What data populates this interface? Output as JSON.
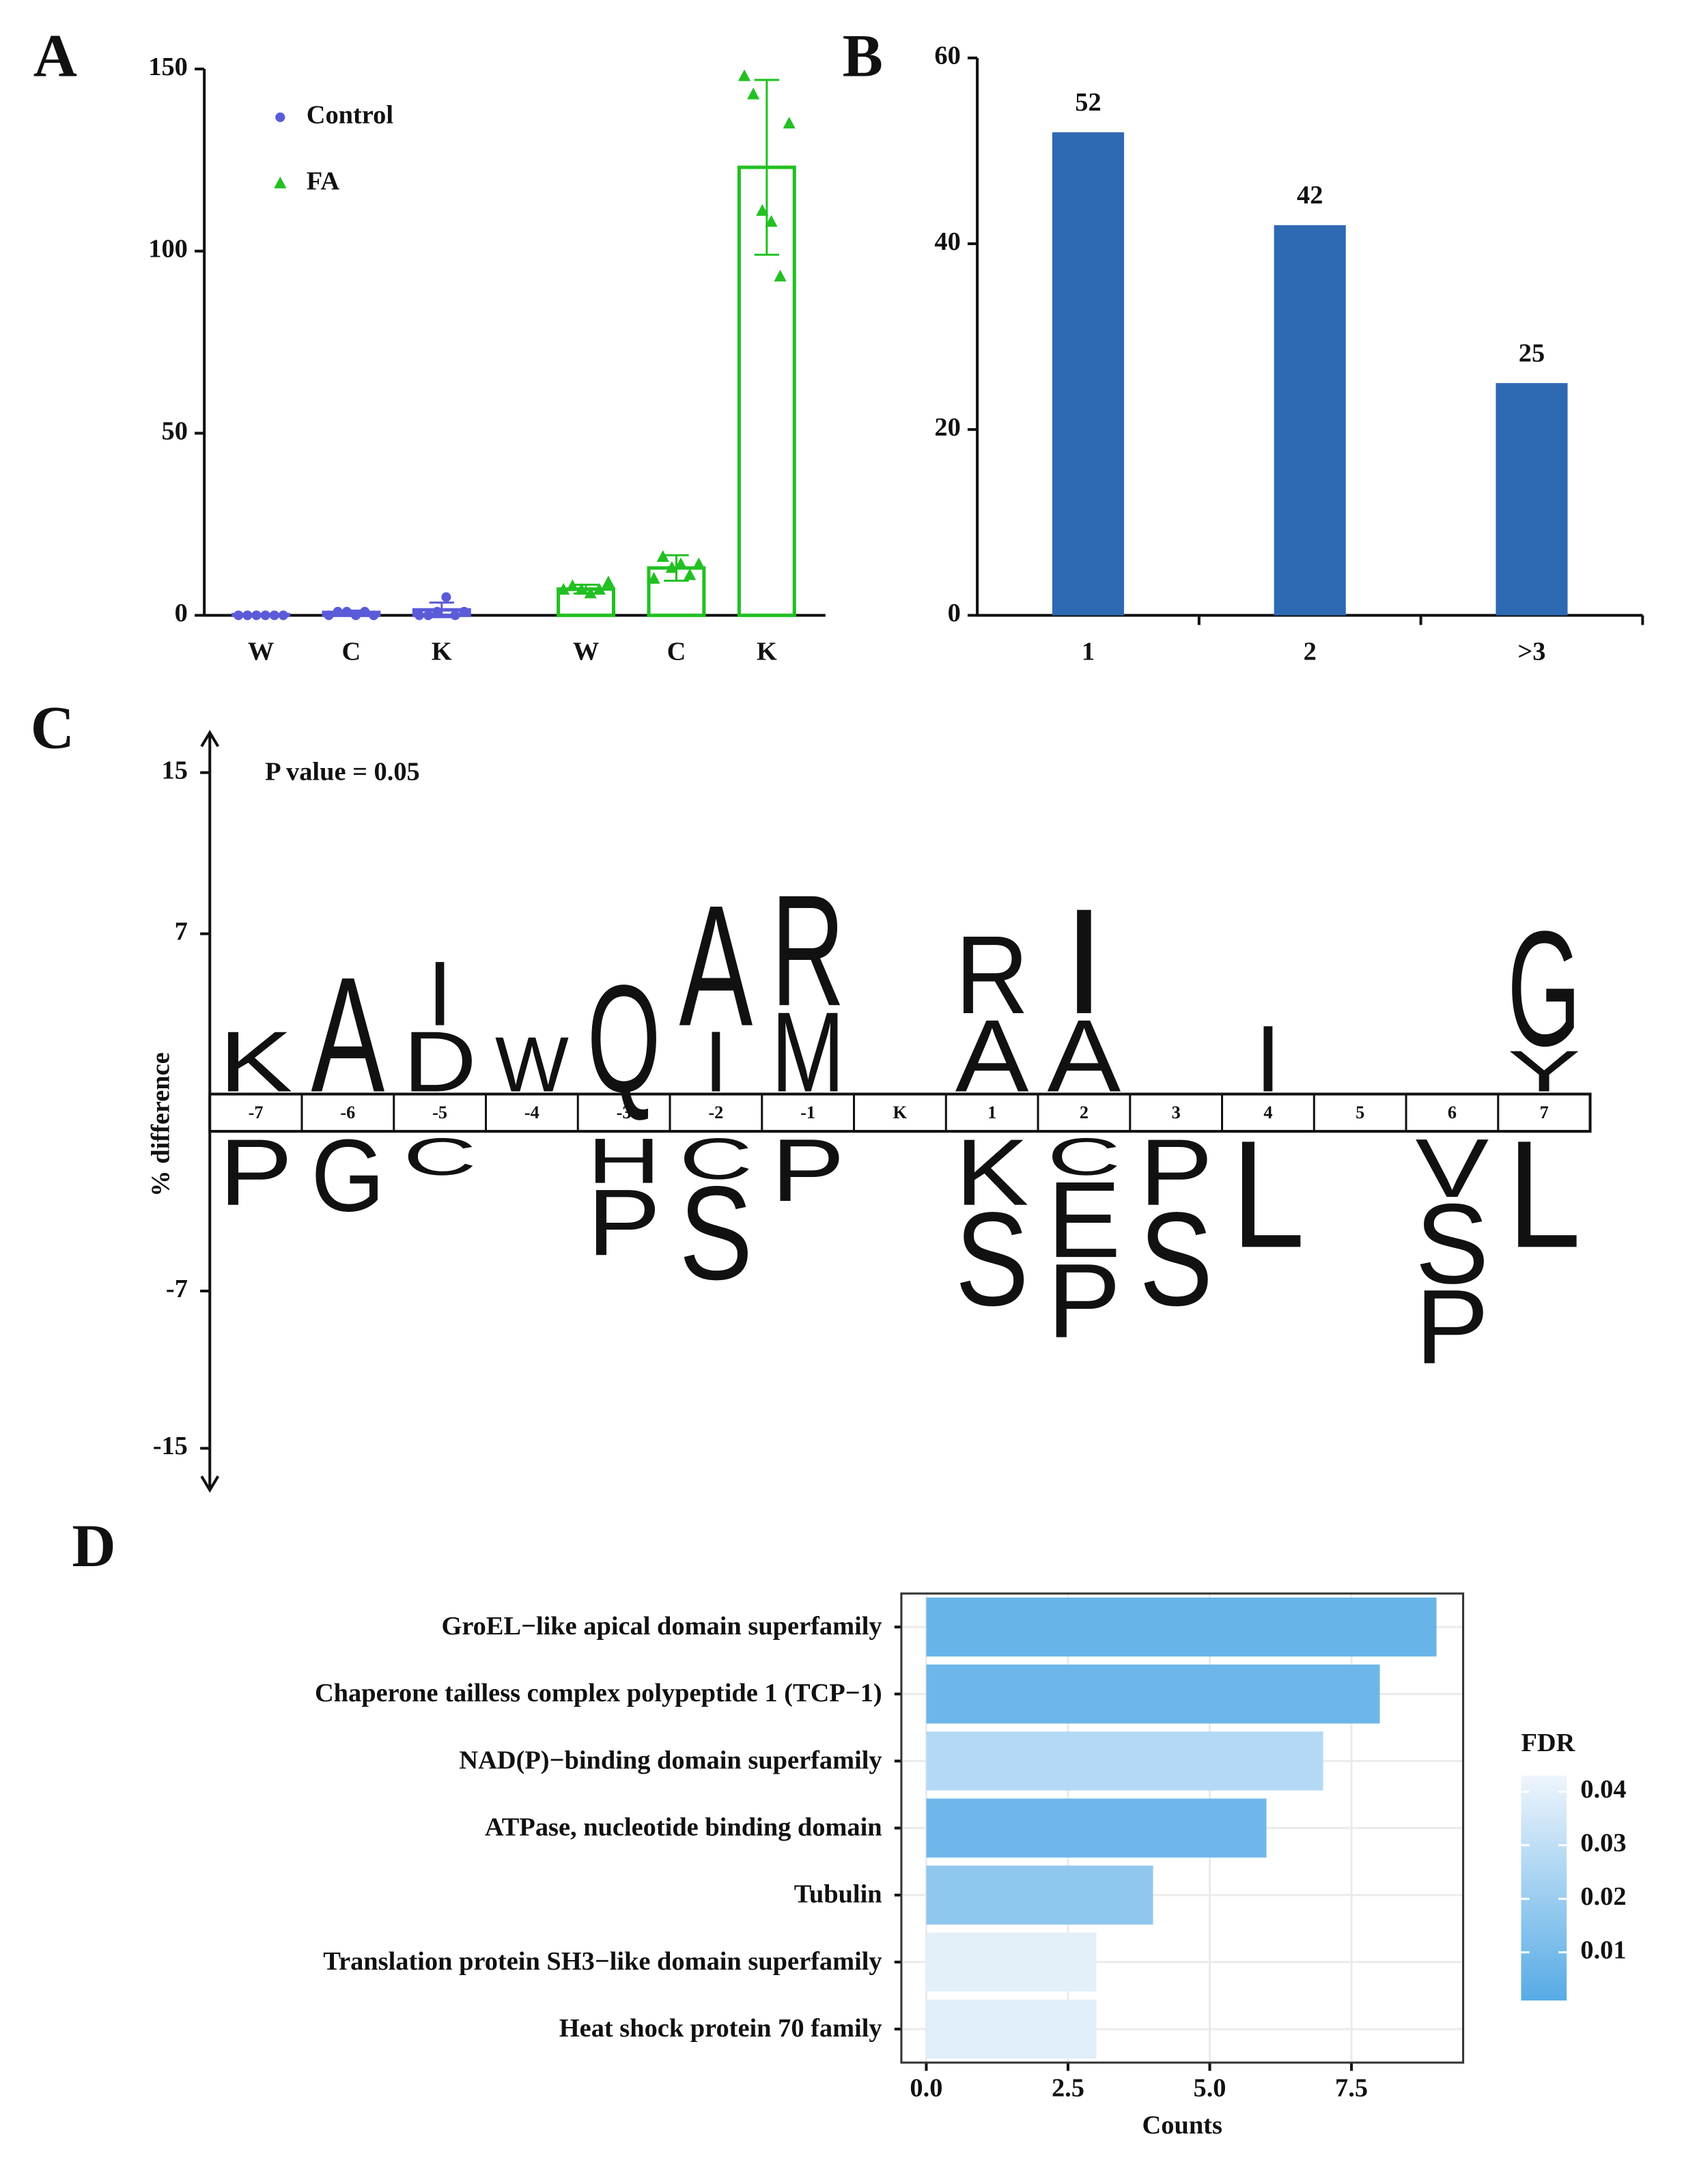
{
  "chart_data": [
    {
      "type": "bar",
      "panel": "A",
      "categories": [
        "W",
        "C",
        "K",
        "W",
        "C",
        "K"
      ],
      "ylim": [
        0,
        150
      ],
      "yticks": [
        0,
        50,
        100,
        150
      ],
      "legend": "top-left",
      "series": [
        {
          "name": "Control",
          "color": "#5b5bd9",
          "marker": "circle",
          "values": [
            0.2,
            0.8,
            1.5,
            null,
            null,
            null
          ],
          "errors": [
            0.1,
            0.5,
            2,
            null,
            null,
            null
          ],
          "points": [
            [
              0,
              0,
              0,
              0,
              0,
              0
            ],
            [
              0,
              1,
              1,
              0,
              1,
              0
            ],
            [
              0,
              0,
              1,
              5,
              0,
              1
            ],
            null,
            null,
            null
          ]
        },
        {
          "name": "FA",
          "color": "#22c022",
          "marker": "triangle",
          "values": [
            null,
            null,
            null,
            7.2,
            13,
            123
          ],
          "errors": [
            null,
            null,
            null,
            1.2,
            3.5,
            24
          ],
          "points": [
            null,
            null,
            null,
            [
              7,
              8,
              7,
              6,
              7,
              9
            ],
            [
              10,
              16,
              13,
              14,
              11,
              14
            ],
            [
              148,
              143,
              111,
              108,
              93,
              135
            ]
          ]
        }
      ]
    },
    {
      "type": "bar",
      "panel": "B",
      "categories": [
        "1",
        "2",
        ">3"
      ],
      "values": [
        52,
        42,
        25
      ],
      "color": "#2e69b3",
      "data_labels": true,
      "ylim": [
        0,
        60
      ],
      "yticks": [
        0,
        20,
        40,
        60
      ]
    },
    {
      "type": "logo",
      "panel": "C",
      "ylabel": "% difference",
      "annotation": "P value = 0.05",
      "ylim": [
        -15,
        15
      ],
      "yticks": [
        15,
        7,
        -7,
        -15
      ],
      "letter_colors": {
        "K": "#2d6db5",
        "A": "#5aac3c",
        "D": "#c8282d",
        "I": "#1a1a1a",
        "W": "#2d6db5",
        "Q": "#c8282d",
        "R": "#1a1a1a",
        "M": "#c8282d",
        "G": "#2d6db5",
        "Y": "#c8282d",
        "P": "#c8282d",
        "C": "#1a1a1a",
        "H": "#1a1a1a",
        "S": "#5aac3c",
        "E": "#2d6db5",
        "L": "#2d6db5",
        "V": "#c020c0"
      },
      "positions": [
        {
          "label": "-7",
          "letters": [
            {
              "letter": "K",
              "value": 3.1
            },
            {
              "letter": "P",
              "value": -3.4
            }
          ]
        },
        {
          "label": "-6",
          "letters": [
            {
              "letter": "A",
              "value": 5.9
            },
            {
              "letter": "G",
              "value": -3.7
            }
          ]
        },
        {
          "label": "-5",
          "letters": [
            {
              "letter": "D",
              "value": 3.1
            },
            {
              "letter": "I",
              "value": 3.3
            },
            {
              "letter": "C",
              "value": -1.9
            }
          ]
        },
        {
          "label": "-4",
          "letters": [
            {
              "letter": "W",
              "value": 2.8
            }
          ]
        },
        {
          "label": "-3",
          "letters": [
            {
              "letter": "Q",
              "value": 5.5
            },
            {
              "letter": "H",
              "value": -2.3
            },
            {
              "letter": "P",
              "value": -3.4
            }
          ]
        },
        {
          "label": "-2",
          "letters": [
            {
              "letter": "I",
              "value": 3.1
            },
            {
              "letter": "A",
              "value": 6.2
            },
            {
              "letter": "C",
              "value": -2.1
            },
            {
              "letter": "S",
              "value": -4.8
            }
          ]
        },
        {
          "label": "-1",
          "letters": [
            {
              "letter": "M",
              "value": 4.1
            },
            {
              "letter": "R",
              "value": 5.7
            },
            {
              "letter": "P",
              "value": -3.2
            }
          ]
        },
        {
          "label": "K",
          "letters": []
        },
        {
          "label": "1",
          "letters": [
            {
              "letter": "A",
              "value": 3.7
            },
            {
              "letter": "R",
              "value": 4.0
            },
            {
              "letter": "K",
              "value": -3.4
            },
            {
              "letter": "S",
              "value": -4.8
            }
          ]
        },
        {
          "label": "2",
          "letters": [
            {
              "letter": "A",
              "value": 3.7
            },
            {
              "letter": "I",
              "value": 5.4
            },
            {
              "letter": "C",
              "value": -1.9
            },
            {
              "letter": "E",
              "value": -3.9
            },
            {
              "letter": "P",
              "value": -3.8
            }
          ]
        },
        {
          "label": "3",
          "letters": [
            {
              "letter": "P",
              "value": -3.4
            },
            {
              "letter": "S",
              "value": -4.8
            }
          ]
        },
        {
          "label": "4",
          "letters": [
            {
              "letter": "I",
              "value": 3.4
            },
            {
              "letter": "L",
              "value": -5.5
            }
          ]
        },
        {
          "label": "5",
          "letters": []
        },
        {
          "label": "6",
          "letters": [
            {
              "letter": "V",
              "value": -3.0
            },
            {
              "letter": "S",
              "value": -4.1
            },
            {
              "letter": "P",
              "value": -3.8
            }
          ]
        },
        {
          "label": "7",
          "letters": [
            {
              "letter": "Y",
              "value": 2.1
            },
            {
              "letter": "G",
              "value": 5.9
            },
            {
              "letter": "L",
              "value": -5.5
            }
          ]
        }
      ]
    },
    {
      "type": "barh",
      "panel": "D",
      "xlabel": "Counts",
      "legend_title": "FDR",
      "categories": [
        "GroEL−like apical domain superfamily",
        "Chaperone tailless complex polypeptide 1 (TCP−1)",
        "NAD(P)−binding domain superfamily",
        "ATPase, nucleotide binding domain",
        "Tubulin",
        "Translation protein SH3−like domain superfamily",
        "Heat shock protein 70 family"
      ],
      "values": [
        9,
        8,
        7,
        6,
        4,
        3,
        3
      ],
      "fdr": [
        0.006,
        0.007,
        0.027,
        0.008,
        0.017,
        0.04,
        0.039
      ],
      "fdr_lim": [
        0.001,
        0.043
      ],
      "fdr_ticks": [
        0.04,
        0.03,
        0.02,
        0.01
      ],
      "color_low": "#56abe6",
      "color_high": "#eef5fc",
      "xlim": [
        -0.44,
        9.47
      ],
      "xticks": [
        {
          "value": 0,
          "label": "0.0"
        },
        {
          "value": 2.5,
          "label": "2.5"
        },
        {
          "value": 5,
          "label": "5.0"
        },
        {
          "value": 7.5,
          "label": "7.5"
        }
      ],
      "grid": true
    }
  ]
}
